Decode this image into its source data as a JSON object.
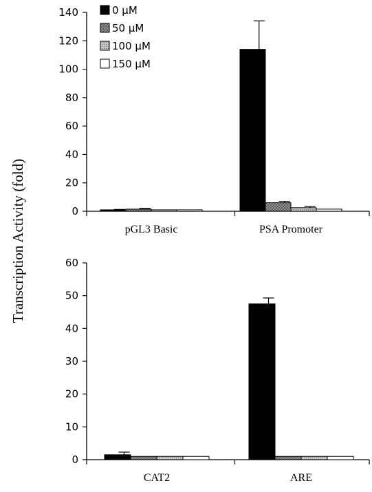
{
  "y_axis_label": "Transcription Activity (fold)",
  "legend": {
    "placement": "top-left",
    "entries": [
      "0 μM",
      "50 μM",
      "100 μM",
      "150 μM"
    ]
  },
  "series_styles": [
    {
      "fill": "#000000",
      "pattern": "solid"
    },
    {
      "fill": "#9a9a9a",
      "pattern": "crosshatch"
    },
    {
      "fill": "#bdbdbd",
      "pattern": "dots"
    },
    {
      "fill": "#ffffff",
      "pattern": "empty"
    }
  ],
  "chart_data": [
    {
      "type": "bar",
      "categories": [
        "pGL3 Basic",
        "PSA Promoter"
      ],
      "series": [
        {
          "name": "0 μM",
          "values": [
            1,
            114
          ],
          "errors": [
            0.3,
            20
          ]
        },
        {
          "name": "50 μM",
          "values": [
            1.5,
            6
          ],
          "errors": [
            0.5,
            1
          ]
        },
        {
          "name": "100 μM",
          "values": [
            1,
            2.5
          ],
          "errors": [
            0,
            0.8
          ]
        },
        {
          "name": "150 μM",
          "values": [
            1,
            1.5
          ],
          "errors": [
            0,
            0
          ]
        }
      ],
      "ylim": [
        0,
        140
      ],
      "yticks": [
        "0",
        "20",
        "40",
        "60",
        "80",
        "100",
        "120",
        "140"
      ],
      "ytick_values": [
        0,
        20,
        40,
        60,
        80,
        100,
        120,
        140
      ],
      "grid": false
    },
    {
      "type": "bar",
      "categories": [
        "CAT2",
        "ARE"
      ],
      "series": [
        {
          "name": "0 μM",
          "values": [
            1.5,
            47.5
          ],
          "errors": [
            0.8,
            1.8
          ]
        },
        {
          "name": "50 μM",
          "values": [
            1,
            1
          ],
          "errors": [
            0,
            0
          ]
        },
        {
          "name": "100 μM",
          "values": [
            1,
            1
          ],
          "errors": [
            0,
            0
          ]
        },
        {
          "name": "150 μM",
          "values": [
            1,
            1
          ],
          "errors": [
            0,
            0
          ]
        }
      ],
      "ylim": [
        0,
        60
      ],
      "yticks": [
        "0",
        "10",
        "20",
        "30",
        "40",
        "50",
        "60"
      ],
      "ytick_values": [
        0,
        10,
        20,
        30,
        40,
        50,
        60
      ],
      "grid": false
    }
  ]
}
